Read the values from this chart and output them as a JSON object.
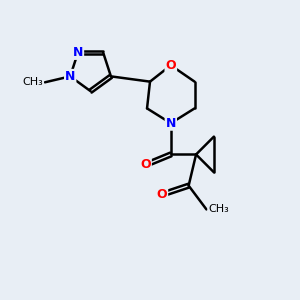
{
  "background_color": "#e8eef5",
  "bond_color": "#000000",
  "atom_colors": {
    "N": "#0000ff",
    "O": "#ff0000",
    "C": "#000000"
  },
  "bond_width": 1.8,
  "dbo": 0.15,
  "font_size": 9,
  "fig_size": [
    3.0,
    3.0
  ],
  "dpi": 100
}
